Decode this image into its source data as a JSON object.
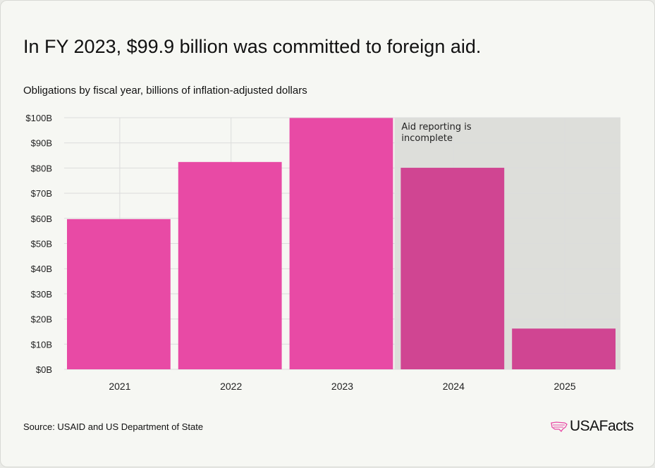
{
  "title": "In FY 2023, $99.9 billion was committed to foreign aid.",
  "subtitle": "Obligations by fiscal year, billions of inflation-adjusted dollars",
  "source": "Source: USAID and US Department of State",
  "logo": "USAFacts",
  "colors": {
    "bar": "#e84aa5",
    "bar_incomplete": "#d04592",
    "shade": "#dddeda",
    "grid": "#dcdcdc"
  },
  "chart_data": {
    "type": "bar",
    "categories": [
      "2021",
      "2022",
      "2023",
      "2024",
      "2025"
    ],
    "values": [
      59.7,
      82.4,
      99.9,
      80.1,
      16.2
    ],
    "incomplete": [
      false,
      false,
      false,
      true,
      true
    ],
    "ylim": [
      0,
      100
    ],
    "yticks": [
      0,
      10,
      20,
      30,
      40,
      50,
      60,
      70,
      80,
      90,
      100
    ],
    "ytick_labels": [
      "$0B",
      "$10B",
      "$20B",
      "$30B",
      "$40B",
      "$50B",
      "$60B",
      "$70B",
      "$80B",
      "$90B",
      "$100B"
    ],
    "annotation": "Aid reporting is incomplete",
    "annotation_lines": [
      "Aid reporting is",
      "incomplete"
    ],
    "grid": true
  }
}
